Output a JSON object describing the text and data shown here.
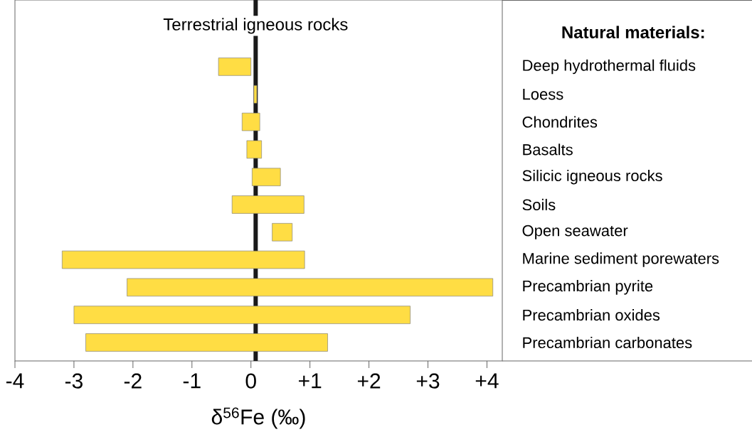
{
  "chart_data": {
    "type": "bar",
    "orientation": "horizontal",
    "ylabel": "Natural materials:",
    "xlabel": "δ$^{56}$Fe (‰)",
    "categories": [
      "Deep hydrothermal fluids",
      "Loess",
      "Chondrites",
      "Basalts",
      "Silicic igneous rocks",
      "Soils",
      "Open seawater",
      "Marine sediment porewaters",
      "Precambrian pyrite",
      "Precambrian oxides",
      "Precambrian carbonates"
    ],
    "base": [
      -0.55,
      0.05,
      -0.15,
      -0.07,
      0.02,
      -0.32,
      0.36,
      -3.2,
      -2.1,
      -3.0,
      -2.8
    ],
    "values": [
      0.55,
      0.05,
      0.3,
      0.25,
      0.48,
      1.22,
      0.34,
      4.11,
      6.2,
      5.7,
      4.1
    ],
    "color": "#ffdd44",
    "xlim": [
      -4,
      4.26
    ],
    "xticks": [
      -4,
      -3,
      -2,
      -1,
      0,
      {
        "value": 1,
        "label": "+1"
      },
      {
        "value": 2,
        "label": "+2"
      },
      {
        "value": 3,
        "label": "+3"
      },
      {
        "value": 4,
        "label": "+4"
      }
    ],
    "ref_lines": [
      {
        "axis": "x",
        "value": 0.08,
        "label": "Terrestrial igneous rocks",
        "color": "#1a1a1a"
      }
    ],
    "grid": false
  }
}
